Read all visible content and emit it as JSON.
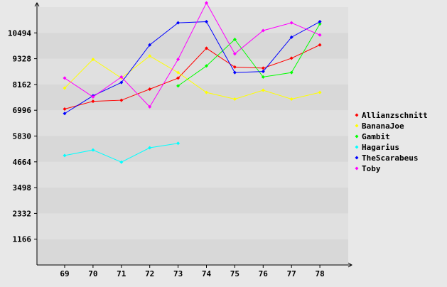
{
  "chart_data": {
    "type": "line",
    "title": "",
    "xlabel": "",
    "ylabel": "",
    "x": [
      69,
      70,
      71,
      72,
      73,
      74,
      75,
      76,
      77,
      78
    ],
    "y_ticks": [
      1166,
      2332,
      3498,
      4664,
      5830,
      6996,
      8162,
      9328,
      10494
    ],
    "ylim": [
      0,
      11660
    ],
    "grid": "horizontal bands",
    "legend_position": "right",
    "colors": {
      "background": "#e8e8e8",
      "band_dark": "#d8d8d8",
      "band_light": "#e0e0e0",
      "axis": "#000000"
    },
    "series": [
      {
        "name": "Allianzschnitt",
        "color": "#ff0000",
        "values": [
          7050,
          7400,
          7450,
          7950,
          8450,
          9800,
          8950,
          8900,
          9350,
          9950
        ]
      },
      {
        "name": "BananaJoe",
        "color": "#ffff00",
        "values": [
          8000,
          9300,
          8450,
          9450,
          8700,
          7800,
          7500,
          7900,
          7500,
          7800
        ]
      },
      {
        "name": "Gambit",
        "color": "#00ff00",
        "values": [
          null,
          null,
          null,
          null,
          8100,
          9000,
          10200,
          8500,
          8700,
          10900
        ]
      },
      {
        "name": "Hagarius",
        "color": "#00ffff",
        "values": [
          4950,
          5200,
          4650,
          5300,
          5500,
          null,
          null,
          null,
          null,
          null
        ]
      },
      {
        "name": "TheScarabeus",
        "color": "#0000ff",
        "values": [
          6850,
          7650,
          8250,
          9950,
          10950,
          11000,
          8700,
          8750,
          10300,
          11000
        ]
      },
      {
        "name": "Toby",
        "color": "#ff00ff",
        "values": [
          8450,
          7600,
          8500,
          7150,
          9300,
          11850,
          9550,
          10600,
          10950,
          10400
        ]
      }
    ]
  }
}
